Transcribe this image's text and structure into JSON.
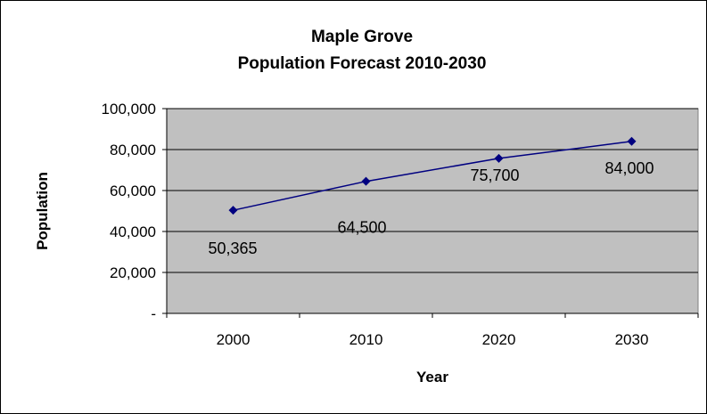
{
  "chart_data": {
    "type": "line",
    "title": "Maple Grove",
    "subtitle": "Population Forecast 2010-2030",
    "xlabel": "Year",
    "ylabel": "Population",
    "categories": [
      "2000",
      "2010",
      "2020",
      "2030"
    ],
    "series": [
      {
        "values": [
          50365,
          64500,
          75700,
          84000
        ]
      }
    ],
    "data_labels": [
      "50,365",
      "64,500",
      "75,700",
      "84,000"
    ],
    "y_ticks": [
      {
        "value": 0,
        "label": "-"
      },
      {
        "value": 20000,
        "label": "20,000"
      },
      {
        "value": 40000,
        "label": "40,000"
      },
      {
        "value": 60000,
        "label": "60,000"
      },
      {
        "value": 80000,
        "label": "80,000"
      },
      {
        "value": 100000,
        "label": "100,000"
      }
    ],
    "ylim": [
      0,
      100000
    ],
    "grid": true,
    "legend": "none",
    "colors": {
      "plot_background": "#c0c0c0",
      "line": "#000080",
      "marker": "#000080",
      "gridline": "#000000"
    }
  }
}
